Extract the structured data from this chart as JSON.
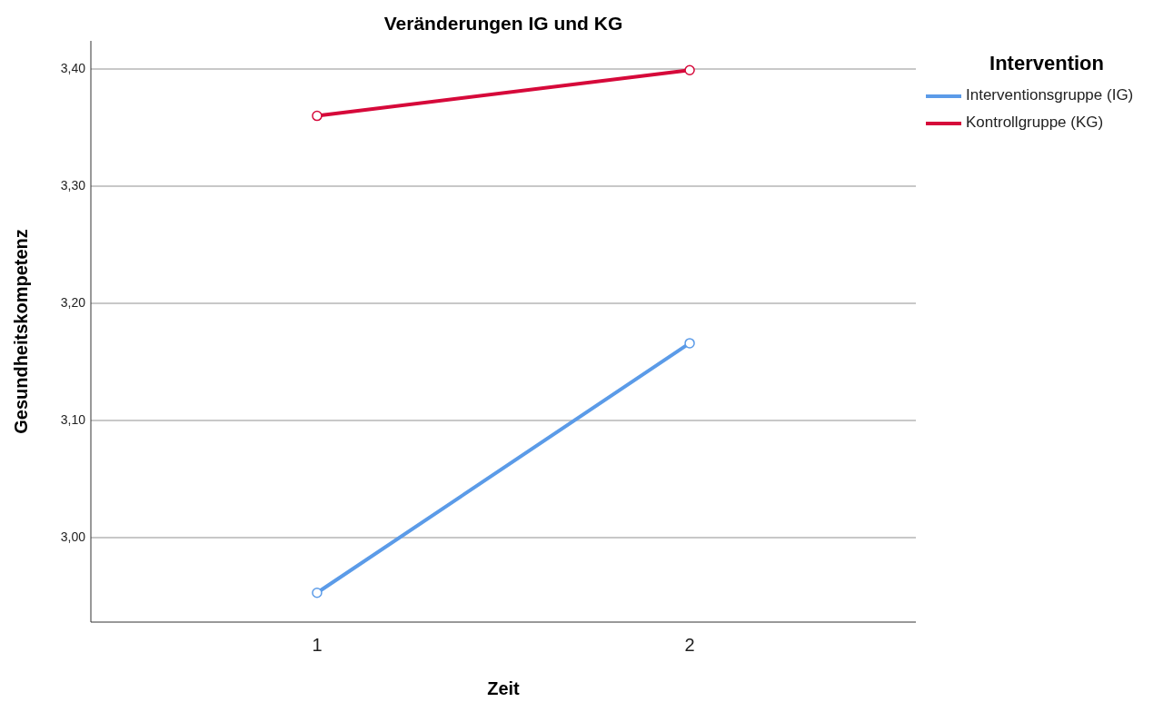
{
  "chart_data": {
    "type": "line",
    "title": "Veränderungen IG und KG",
    "xlabel": "Zeit",
    "ylabel": "Gesundheitskompetenz",
    "legend_title": "Intervention",
    "categories": [
      "1",
      "2"
    ],
    "series": [
      {
        "name": "Interventionsgruppe (IG)",
        "color": "#5b9be8",
        "values": [
          2.953,
          3.166
        ]
      },
      {
        "name": "Kontrollgruppe (KG)",
        "color": "#d6093a",
        "values": [
          3.36,
          3.399
        ]
      }
    ],
    "ylim": [
      2.928,
      3.424
    ],
    "yticks": [
      {
        "value": 3.0,
        "label": "3,00"
      },
      {
        "value": 3.1,
        "label": "3,10"
      },
      {
        "value": 3.2,
        "label": "3,20"
      },
      {
        "value": 3.3,
        "label": "3,30"
      },
      {
        "value": 3.4,
        "label": "3,40"
      }
    ],
    "grid": "y",
    "legend": "top right",
    "marker": "circle",
    "line_style": "solid"
  }
}
